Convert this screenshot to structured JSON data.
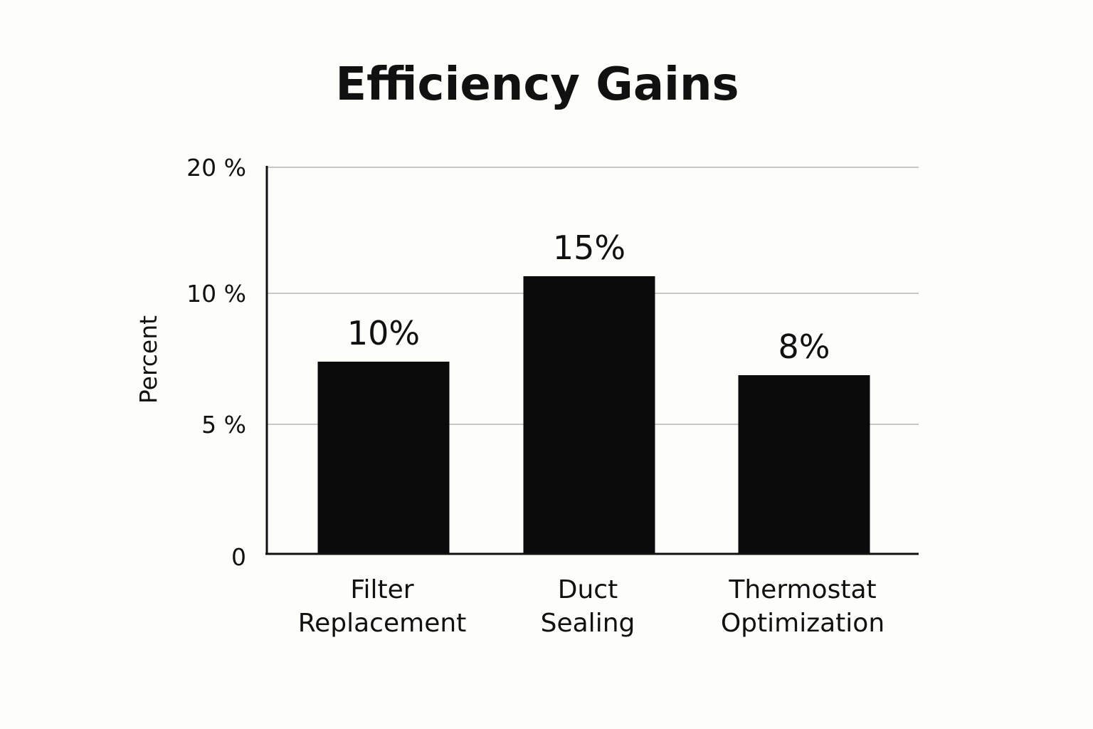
{
  "chart_data": {
    "type": "bar",
    "title": "Efficiency Gains",
    "ylabel": "Percent",
    "xlabel": "",
    "categories": [
      [
        "Filter",
        "Replacement"
      ],
      [
        "Duct",
        "Sealing"
      ],
      [
        "Thermostat",
        "Optimization"
      ]
    ],
    "values": [
      10,
      15,
      8
    ],
    "value_labels": [
      "10%",
      "15%",
      "8%"
    ],
    "y_ticks": [
      {
        "label": "0",
        "value": 0
      },
      {
        "label": "5 %",
        "value": 5
      },
      {
        "label": "10 %",
        "value": 10
      },
      {
        "label": "20 %",
        "value": 20
      }
    ],
    "grid": true,
    "legend": "none",
    "colors": {
      "bar": "#0b0b0b",
      "axis": "#111111",
      "grid": "#c8c8c8",
      "background": "#fdfdfa"
    }
  }
}
